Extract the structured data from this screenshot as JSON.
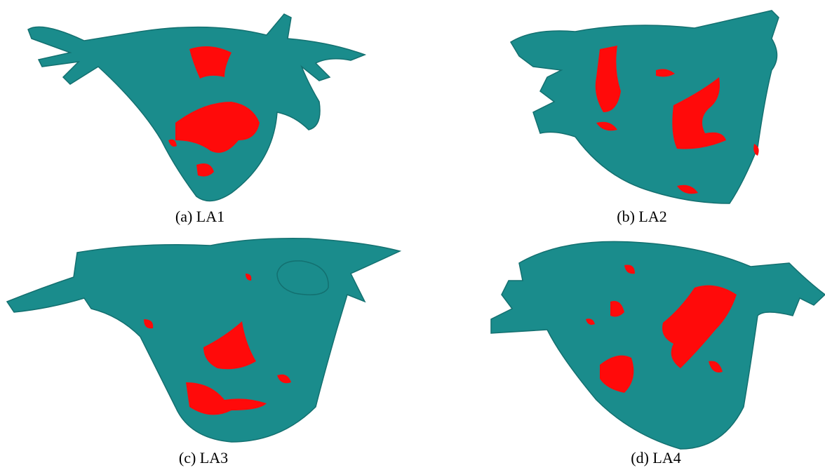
{
  "figure": {
    "panels": [
      {
        "caption": "(a) LA1"
      },
      {
        "caption": "(b) LA2"
      },
      {
        "caption": "(c) LA3"
      },
      {
        "caption": "(d) LA4"
      }
    ]
  }
}
